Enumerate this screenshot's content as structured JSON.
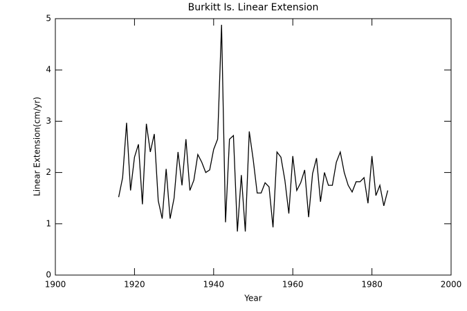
{
  "chart_data": {
    "type": "line",
    "title": "Burkitt Is. Linear Extension",
    "x_label": "Year",
    "y_label": "Linear Extension(cm/yr)",
    "x": [
      1916,
      1917,
      1918,
      1919,
      1920,
      1921,
      1922,
      1923,
      1924,
      1925,
      1926,
      1927,
      1928,
      1929,
      1930,
      1931,
      1932,
      1933,
      1934,
      1935,
      1936,
      1937,
      1938,
      1939,
      1940,
      1941,
      1942,
      1943,
      1944,
      1945,
      1946,
      1947,
      1948,
      1949,
      1950,
      1951,
      1952,
      1953,
      1954,
      1955,
      1956,
      1957,
      1958,
      1959,
      1960,
      1961,
      1962,
      1963,
      1964,
      1965,
      1966,
      1967,
      1968,
      1969,
      1970,
      1971,
      1972,
      1973,
      1974,
      1975,
      1976,
      1977,
      1978,
      1979,
      1980,
      1981,
      1982,
      1983,
      1984
    ],
    "values": [
      1.52,
      1.9,
      2.97,
      1.65,
      2.3,
      2.55,
      1.38,
      2.95,
      2.4,
      2.75,
      1.45,
      1.1,
      2.07,
      1.1,
      1.5,
      2.4,
      1.75,
      2.65,
      1.65,
      1.85,
      2.35,
      2.2,
      2.0,
      2.05,
      2.45,
      2.65,
      4.88,
      1.03,
      2.65,
      2.72,
      0.85,
      1.95,
      0.85,
      2.8,
      2.25,
      1.6,
      1.6,
      1.8,
      1.72,
      0.93,
      2.4,
      2.3,
      1.85,
      1.2,
      2.32,
      1.65,
      1.8,
      2.05,
      1.13,
      1.98,
      2.28,
      1.43,
      2.0,
      1.75,
      1.75,
      2.2,
      2.4,
      2.0,
      1.75,
      1.62,
      1.82,
      1.82,
      1.9,
      1.4,
      2.32,
      1.55,
      1.75,
      1.35,
      1.65
    ],
    "color": "#000000",
    "xlim": [
      1900,
      2000
    ],
    "xticks": [
      1900,
      1920,
      1940,
      1960,
      1980,
      2000
    ],
    "ylim": [
      0,
      5
    ],
    "yticks": [
      0,
      1,
      2,
      3,
      4,
      5
    ]
  }
}
